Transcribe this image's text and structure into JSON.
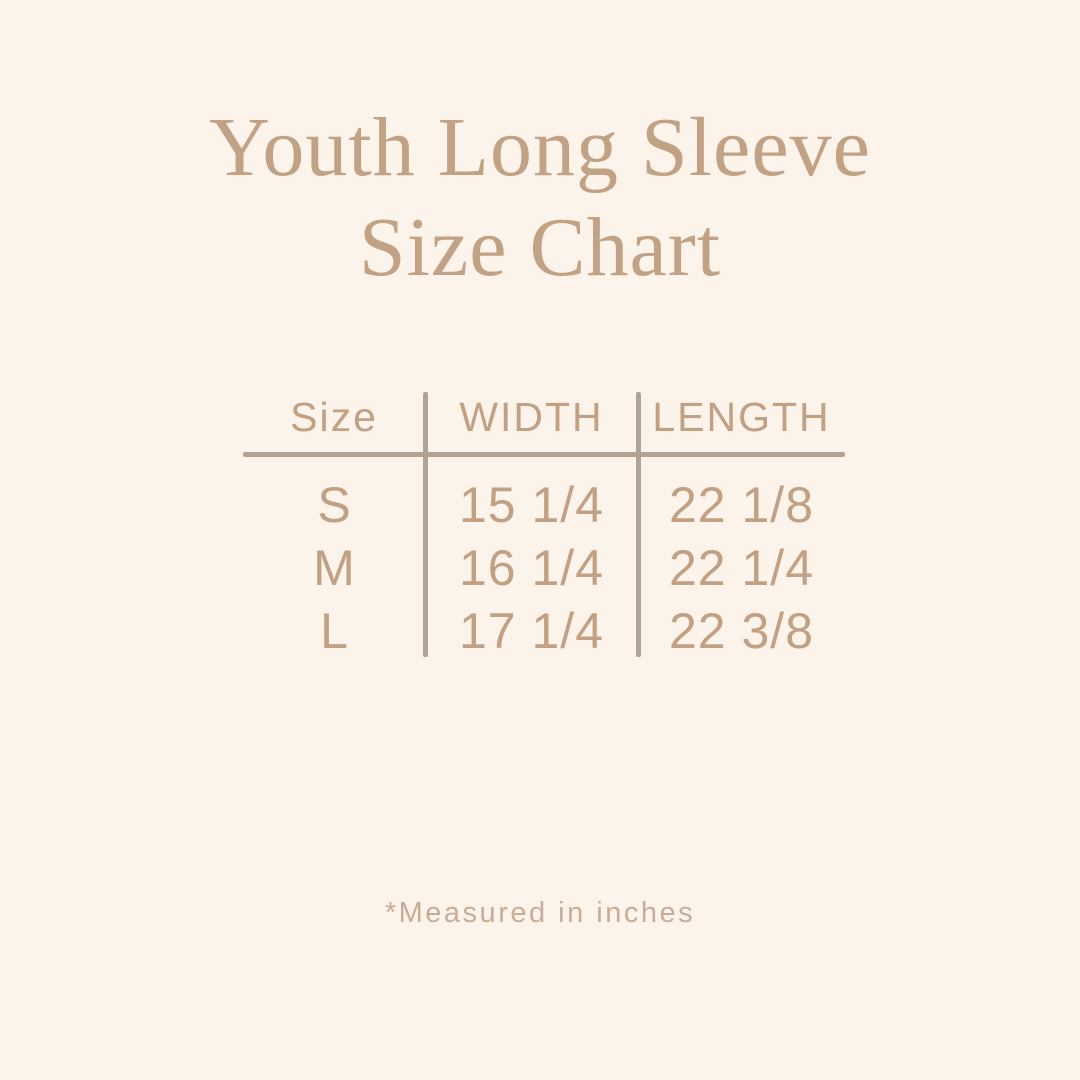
{
  "title": {
    "line1": "Youth Long Sleeve",
    "line2": "Size Chart"
  },
  "chart_data": {
    "type": "table",
    "title": "Youth Long Sleeve Size Chart",
    "columns": [
      "Size",
      "WIDTH",
      "LENGTH"
    ],
    "rows": [
      [
        "S",
        "15 1/4",
        "22 1/8"
      ],
      [
        "M",
        "16 1/4",
        "22 1/4"
      ],
      [
        "L",
        "17 1/4",
        "22 3/8"
      ]
    ],
    "units": "inches",
    "footnote": "*Measured in inches"
  },
  "footnote": {
    "text": "*Measured in inches"
  },
  "colors": {
    "background": "#fcf3ea",
    "title-color": "#c2a284",
    "table-text": "#c1a083",
    "rule-color": "#b1a294",
    "footnote-color": "#c8ad96"
  }
}
